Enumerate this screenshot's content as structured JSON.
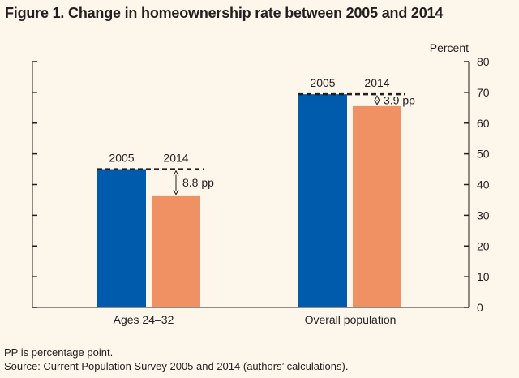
{
  "title": "Figure 1. Change in homeownership rate between 2005 and 2014",
  "footnotes": [
    "PP is percentage point.",
    "Source: Current Population Survey 2005 and 2014 (authors’ calculations)."
  ],
  "chart_data": {
    "type": "bar",
    "categories": [
      "Ages 24–32",
      "Overall population"
    ],
    "series": [
      {
        "name": "2005",
        "values": [
          45.0,
          69.4
        ],
        "color": "#005bac"
      },
      {
        "name": "2014",
        "values": [
          36.2,
          65.5
        ],
        "color": "#ef9163"
      }
    ],
    "annotations": [
      "8.8 pp",
      "3.9 pp"
    ],
    "ylabel": "Percent",
    "ylim": [
      0,
      80
    ],
    "yticks": [
      0,
      10,
      20,
      30,
      40,
      50,
      60,
      70,
      80
    ],
    "ytick_labels": [
      "0",
      "10",
      "20",
      "30",
      "40",
      "50",
      "60",
      "70",
      "80"
    ],
    "grid": false,
    "legend": "none"
  }
}
